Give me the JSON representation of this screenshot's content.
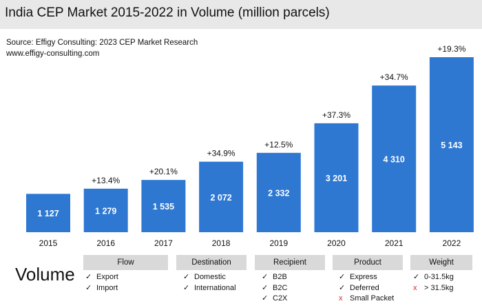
{
  "title": "India CEP Market 2015-2022 in Volume (million parcels)",
  "source_line1": "Source: Effigy Consulting: 2023 CEP Market Research",
  "source_line2": "www.effigy-consulting.com",
  "chart_data": {
    "type": "bar",
    "title": "India CEP Market 2015-2022 in Volume (million parcels)",
    "xlabel": "",
    "ylabel": "",
    "ylim": [
      0,
      5500
    ],
    "categories": [
      "2015",
      "2016",
      "2017",
      "2018",
      "2019",
      "2020",
      "2021",
      "2022"
    ],
    "values": [
      1127,
      1279,
      1535,
      2072,
      2332,
      3201,
      4310,
      5143
    ],
    "value_labels": [
      "1 127",
      "1 279",
      "1 535",
      "2 072",
      "2 332",
      "3 201",
      "4 310",
      "5 143"
    ],
    "growth_labels": [
      "",
      "+13.4%",
      "+20.1%",
      "+34.9%",
      "+12.5%",
      "+37.3%",
      "+34.7%",
      "+19.3%"
    ],
    "color": "#2e78d2"
  },
  "legend": {
    "volume_label": "Volume",
    "check_symbol": "✓",
    "cross_symbol": "x",
    "categories": [
      {
        "header": "Flow",
        "items": [
          {
            "text": "Export",
            "included": true
          },
          {
            "text": "Import",
            "included": true
          }
        ]
      },
      {
        "header": "Destination",
        "items": [
          {
            "text": "Domestic",
            "included": true
          },
          {
            "text": "International",
            "included": true
          }
        ]
      },
      {
        "header": "Recipient",
        "items": [
          {
            "text": "B2B",
            "included": true
          },
          {
            "text": "B2C",
            "included": true
          },
          {
            "text": "C2X",
            "included": true
          }
        ]
      },
      {
        "header": "Product",
        "items": [
          {
            "text": "Express",
            "included": true
          },
          {
            "text": "Deferred",
            "included": true
          },
          {
            "text": "Small Packet",
            "included": false
          }
        ]
      },
      {
        "header": "Weight",
        "items": [
          {
            "text": "0-31.5kg",
            "included": true
          },
          {
            "text": "> 31.5kg",
            "included": false
          }
        ]
      }
    ]
  }
}
